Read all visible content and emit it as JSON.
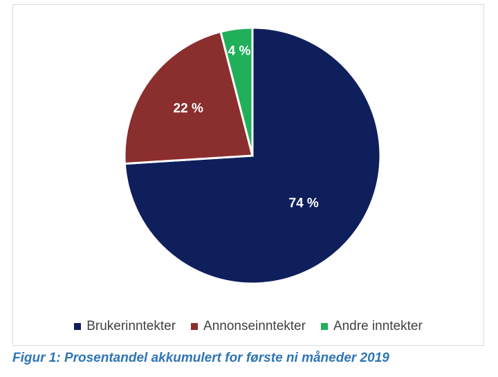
{
  "chart_data": {
    "type": "pie",
    "categories": [
      "Brukerinntekter",
      "Annonseinntekter",
      "Andre inntekter"
    ],
    "values": [
      74,
      22,
      4
    ],
    "data_labels": [
      "74 %",
      "22 %",
      "4 %"
    ],
    "colors": [
      "#0f1f5c",
      "#8b2e2e",
      "#21b05a"
    ],
    "start_angle_deg": 0,
    "legend_position": "bottom"
  },
  "caption": "Figur 1: Prosentandel akkumulert for første ni måneder 2019"
}
